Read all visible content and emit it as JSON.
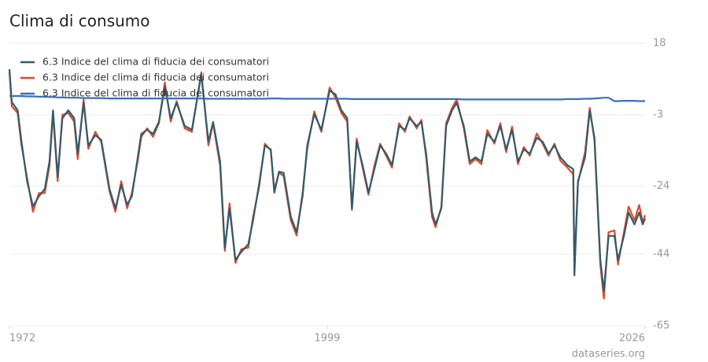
{
  "chart_data": {
    "type": "line",
    "title": "Clima di consumo",
    "source": "dataseries.org",
    "x": [
      1972.0,
      1972.2,
      1972.7,
      1973.0,
      1973.5,
      1974.0,
      1974.5,
      1975.0,
      1975.4,
      1975.7,
      1976.1,
      1976.5,
      1977.0,
      1977.5,
      1977.8,
      1978.3,
      1978.7,
      1979.3,
      1979.8,
      1980.5,
      1981.0,
      1981.5,
      1982.0,
      1982.4,
      1982.9,
      1983.2,
      1983.7,
      1984.2,
      1984.7,
      1985.2,
      1985.7,
      1986.2,
      1986.9,
      1987.5,
      1988.3,
      1988.9,
      1989.3,
      1989.9,
      1990.3,
      1990.7,
      1991.2,
      1991.7,
      1992.3,
      1992.7,
      1993.2,
      1993.7,
      1994.2,
      1994.5,
      1994.9,
      1995.3,
      1995.9,
      1996.4,
      1996.9,
      1997.3,
      1997.9,
      1998.5,
      1999.2,
      1999.7,
      2000.2,
      2000.7,
      2001.1,
      2001.5,
      2002.0,
      2002.5,
      2003.0,
      2003.5,
      2004.0,
      2004.5,
      2005.1,
      2005.6,
      2006.0,
      2006.6,
      2007.0,
      2007.4,
      2007.9,
      2008.2,
      2008.7,
      2009.1,
      2009.6,
      2010.0,
      2010.6,
      2011.1,
      2011.6,
      2012.1,
      2012.6,
      2013.2,
      2013.7,
      2014.2,
      2014.7,
      2015.2,
      2015.7,
      2016.2,
      2016.8,
      2017.3,
      2017.8,
      2018.3,
      2018.8,
      2019.4,
      2019.9,
      2020.0,
      2020.3,
      2020.9,
      2021.3,
      2021.7,
      2022.2,
      2022.5,
      2022.9,
      2023.4,
      2023.7,
      2024.2,
      2024.6,
      2025.1,
      2025.5,
      2025.8,
      2026.0
    ],
    "series": [
      {
        "name": "6.3 Indice del clima di fiducia dei consumatori",
        "color": "#e0482c",
        "values": [
          9.5,
          -0.5,
          -2.5,
          -11.5,
          -21.5,
          -31.5,
          -26,
          -26,
          -18,
          -2.5,
          -22.5,
          -3,
          -2.5,
          -5,
          -16,
          1.5,
          -13,
          -8,
          -11,
          -25.5,
          -31.5,
          -22.5,
          -30.5,
          -26,
          -16.5,
          -9.5,
          -7,
          -9.5,
          -5.5,
          6.5,
          -5,
          1,
          -7,
          -8,
          9.5,
          -12,
          -5.5,
          -18,
          -43,
          -29,
          -46.5,
          -42.5,
          -42,
          -33,
          -24.5,
          -11.5,
          -13.5,
          -25,
          -20,
          -21,
          -34,
          -38.5,
          -26,
          -13,
          -2,
          -8,
          5,
          2,
          -2.5,
          -5,
          -31,
          -10,
          -18.5,
          -26.5,
          -18,
          -11.5,
          -15,
          -18.5,
          -5.5,
          -8,
          -3.5,
          -7,
          -4.5,
          -15.5,
          -33,
          -36,
          -30,
          -5.5,
          -1,
          1.5,
          -7,
          -17.5,
          -16,
          -17.5,
          -7.5,
          -11.5,
          -5.5,
          -14,
          -6.5,
          -17.5,
          -12.5,
          -15,
          -8.5,
          -11.5,
          -15,
          -11.5,
          -16.5,
          -18.5,
          -20.5,
          -48,
          -23,
          -14,
          -1,
          -10.5,
          -47,
          -57,
          -37.5,
          -37,
          -47,
          -37.5,
          -30,
          -34,
          -29.5,
          -34.5,
          -32.5
        ]
      },
      {
        "name": "6.3 Indice del clima di fiducia dei consumatori",
        "color": "#2f5d6b",
        "values": [
          10.4,
          0.7,
          -1.7,
          -10.4,
          -22.5,
          -29.9,
          -27,
          -24.8,
          -16.7,
          -1.7,
          -21.3,
          -4,
          -1.7,
          -4,
          -14.4,
          0.5,
          -12,
          -9,
          -10.4,
          -24.8,
          -30.5,
          -23.6,
          -29.4,
          -27,
          -15.5,
          -8.6,
          -7.4,
          -8.6,
          -5.1,
          5.3,
          -4,
          0.5,
          -6.3,
          -7.4,
          8.8,
          -10.9,
          -5.1,
          -16.7,
          -42.1,
          -30.5,
          -45.6,
          -43.3,
          -41,
          -34,
          -23.6,
          -12,
          -13.2,
          -25.9,
          -19.7,
          -20.1,
          -32.9,
          -37.5,
          -27,
          -12,
          -2.8,
          -7.4,
          4.1,
          3,
          -1.7,
          -4,
          -30.5,
          -10.9,
          -17.8,
          -25.9,
          -19,
          -12,
          -14.4,
          -17.8,
          -6.3,
          -7.4,
          -4,
          -6.3,
          -5.1,
          -14.4,
          -31.7,
          -35.2,
          -30.5,
          -6.3,
          -1.7,
          0.5,
          -6.3,
          -16.7,
          -15.5,
          -16.7,
          -8.6,
          -10.9,
          -6.3,
          -13.2,
          -7.4,
          -16.7,
          -13.2,
          -14.4,
          -9.8,
          -10.9,
          -14.4,
          -12,
          -15.5,
          -17.8,
          -19,
          -50.2,
          -22.5,
          -15.5,
          -1.7,
          -9.8,
          -45.6,
          -54.8,
          -38.6,
          -38.6,
          -45.6,
          -38.6,
          -31.7,
          -35.2,
          -31.7,
          -35.2,
          -33.5
        ]
      },
      {
        "name": "6.3 Indice del clima di fiducia dei consumatori",
        "color": "#3a6fc1",
        "values": [
          2.6,
          2.5,
          2.5,
          2.5,
          2.4,
          2.4,
          2.3,
          2.3,
          2.2,
          2.2,
          2.1,
          2.1,
          2.0,
          2.0,
          2.0,
          1.9,
          1.9,
          1.9,
          1.9,
          1.8,
          1.8,
          1.8,
          1.8,
          1.8,
          1.8,
          1.8,
          1.8,
          1.8,
          1.8,
          1.8,
          1.8,
          1.8,
          1.8,
          1.8,
          1.8,
          1.7,
          1.7,
          1.7,
          1.7,
          1.7,
          1.7,
          1.7,
          1.7,
          1.7,
          1.7,
          1.7,
          1.8,
          1.8,
          1.8,
          1.7,
          1.7,
          1.7,
          1.7,
          1.7,
          1.7,
          1.7,
          1.7,
          1.7,
          1.7,
          1.7,
          1.6,
          1.6,
          1.6,
          1.6,
          1.6,
          1.6,
          1.6,
          1.6,
          1.6,
          1.6,
          1.6,
          1.6,
          1.6,
          1.6,
          1.6,
          1.6,
          1.6,
          1.6,
          1.6,
          1.6,
          1.5,
          1.5,
          1.5,
          1.5,
          1.5,
          1.5,
          1.5,
          1.5,
          1.5,
          1.5,
          1.5,
          1.5,
          1.5,
          1.5,
          1.5,
          1.5,
          1.5,
          1.6,
          1.6,
          1.6,
          1.6,
          1.7,
          1.7,
          1.8,
          1.9,
          2.0,
          2.0,
          1.0,
          1.0,
          1.1,
          1.1,
          1.1,
          1.0,
          1.0,
          1.0
        ]
      }
    ],
    "xlim": [
      1972,
      2026
    ],
    "xticks": [
      1972,
      1999,
      2026
    ],
    "ylim": [
      -65,
      18
    ],
    "yticks": [
      18,
      -3,
      -24,
      -44,
      -65
    ],
    "grid": true,
    "legend": "upper left"
  }
}
